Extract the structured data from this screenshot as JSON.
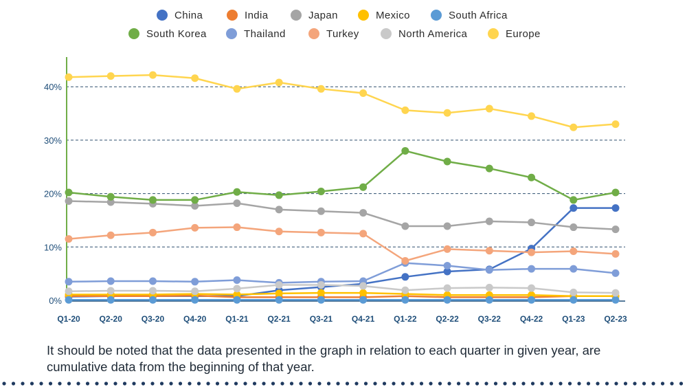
{
  "footnote": "It should be noted that the data presented in the graph in relation to each quarter in given year, are cumulative data from the beginning of that year.",
  "chart_data": {
    "type": "line",
    "title": "",
    "xlabel": "",
    "ylabel": "",
    "categories": [
      "Q1-20",
      "Q2-20",
      "Q3-20",
      "Q4-20",
      "Q1-21",
      "Q2-21",
      "Q3-21",
      "Q4-21",
      "Q1-22",
      "Q2-22",
      "Q3-22",
      "Q4-22",
      "Q1-23",
      "Q2-23"
    ],
    "ylim": [
      0,
      45
    ],
    "yticks": [
      0,
      10,
      20,
      30,
      40
    ],
    "ytick_labels": [
      "0%",
      "10%",
      "20%",
      "30%",
      "40%"
    ],
    "grid": "horizontal dashed",
    "legend_position": "top",
    "series": [
      {
        "name": "China",
        "color": "#4472c4",
        "values": [
          0.7,
          0.8,
          0.8,
          0.8,
          0.8,
          1.9,
          2.5,
          3.1,
          4.4,
          5.4,
          5.8,
          9.7,
          17.3,
          17.3
        ]
      },
      {
        "name": "India",
        "color": "#ed7d31",
        "values": [
          0.8,
          0.8,
          0.8,
          0.9,
          0.6,
          0.6,
          0.6,
          0.6,
          0.8,
          0.6,
          0.6,
          0.6,
          0.8,
          0.8
        ]
      },
      {
        "name": "Japan",
        "color": "#a5a5a5",
        "values": [
          18.6,
          18.4,
          18.1,
          17.7,
          18.2,
          17.0,
          16.7,
          16.4,
          13.9,
          13.9,
          14.8,
          14.6,
          13.7,
          13.3
        ]
      },
      {
        "name": "Mexico",
        "color": "#ffc000",
        "values": [
          1.1,
          1.1,
          1.1,
          1.2,
          1.1,
          1.3,
          1.4,
          1.4,
          1.2,
          1.0,
          1.0,
          1.0,
          0.8,
          0.8
        ]
      },
      {
        "name": "South Africa",
        "color": "#5b9bd5",
        "values": [
          0.1,
          0.1,
          0.1,
          0.1,
          0.1,
          0.1,
          0.1,
          0.1,
          0.1,
          0.1,
          0.1,
          0.1,
          0.1,
          0.1
        ]
      },
      {
        "name": "South Korea",
        "color": "#70ad47",
        "values": [
          20.2,
          19.4,
          18.8,
          18.8,
          20.3,
          19.7,
          20.4,
          21.2,
          28.0,
          26.0,
          24.7,
          23.0,
          18.8,
          20.2
        ]
      },
      {
        "name": "Thailand",
        "color": "#7f9dd8",
        "values": [
          3.5,
          3.6,
          3.6,
          3.5,
          3.8,
          3.3,
          3.5,
          3.6,
          7.0,
          6.5,
          5.7,
          5.9,
          5.9,
          5.1
        ]
      },
      {
        "name": "Turkey",
        "color": "#f4a57b",
        "values": [
          11.5,
          12.2,
          12.7,
          13.6,
          13.7,
          12.9,
          12.7,
          12.5,
          7.4,
          9.6,
          9.3,
          9.0,
          9.2,
          8.7
        ]
      },
      {
        "name": "North America",
        "color": "#c9c9c9",
        "values": [
          1.7,
          1.8,
          1.8,
          1.7,
          2.2,
          2.9,
          2.9,
          2.7,
          1.9,
          2.3,
          2.4,
          2.3,
          1.5,
          1.4
        ]
      },
      {
        "name": "Europe",
        "color": "#ffd54f",
        "values": [
          41.8,
          42.0,
          42.2,
          41.6,
          39.6,
          40.8,
          39.6,
          38.8,
          35.6,
          35.1,
          35.9,
          34.5,
          32.4,
          33.0
        ]
      }
    ]
  }
}
